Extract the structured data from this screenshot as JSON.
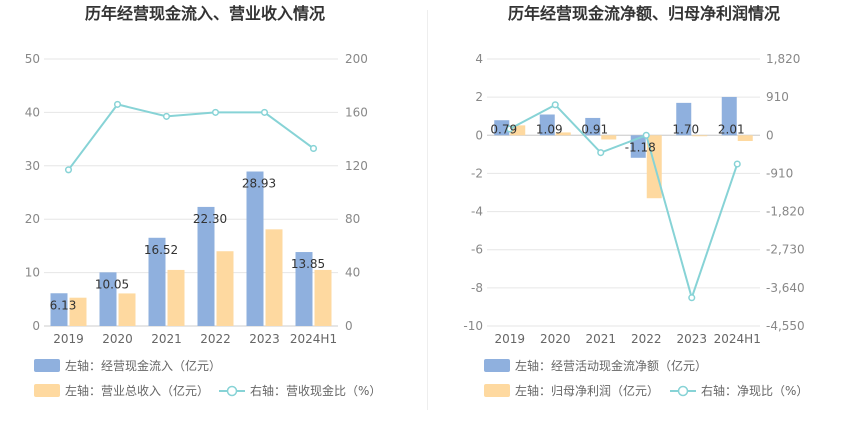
{
  "chart_data": [
    {
      "type": "bar",
      "title": "历年经营现金流入、营业收入情况",
      "categories": [
        "2019",
        "2020",
        "2021",
        "2022",
        "2023",
        "2024H1"
      ],
      "left_axis": {
        "min": 0,
        "max": 50,
        "ticks": [
          "0",
          "10",
          "20",
          "30",
          "40",
          "50"
        ]
      },
      "right_axis": {
        "min": 0,
        "max": 200,
        "ticks": [
          "0",
          "40",
          "80",
          "120",
          "160",
          "200"
        ]
      },
      "series": [
        {
          "name": "左轴：经营现金流入（亿元）",
          "type": "bar",
          "axis": "left",
          "color": "#8fb0de",
          "values": [
            6.13,
            10.05,
            16.52,
            22.3,
            28.93,
            13.85
          ],
          "labels": [
            "6.13",
            "10.05",
            "16.52",
            "22.30",
            "28.93",
            "13.85"
          ]
        },
        {
          "name": "左轴：营业总收入（亿元）",
          "type": "bar",
          "axis": "left",
          "color": "#fed9a0",
          "values": [
            5.3,
            6.1,
            10.5,
            14.0,
            18.1,
            10.5
          ]
        },
        {
          "name": "右轴：营收现金比（%）",
          "type": "line",
          "axis": "right",
          "color": "#87d3d6",
          "values": [
            117,
            166,
            157,
            160,
            160,
            133
          ]
        }
      ],
      "grid": true,
      "legend": "bottom"
    },
    {
      "type": "bar",
      "title": "历年经营现金流净额、归母净利润情况",
      "categories": [
        "2019",
        "2020",
        "2021",
        "2022",
        "2023",
        "2024H1"
      ],
      "left_axis": {
        "min": -10,
        "max": 4,
        "ticks": [
          "-10",
          "-8",
          "-6",
          "-4",
          "-2",
          "0",
          "2",
          "4"
        ]
      },
      "right_axis": {
        "min": -4550,
        "max": 1820,
        "ticks": [
          "-4,550",
          "-3,640",
          "-2,730",
          "-1,820",
          "-910",
          "0",
          "910",
          "1,820"
        ]
      },
      "series": [
        {
          "name": "左轴：经营活动现金流净额（亿元）",
          "type": "bar",
          "axis": "left",
          "color": "#8fb0de",
          "values": [
            0.79,
            1.09,
            0.91,
            -1.18,
            1.7,
            2.01
          ],
          "labels": [
            "0.79",
            "1.09",
            "0.91",
            "-1.18",
            "1.70",
            "2.01"
          ]
        },
        {
          "name": "左轴：归母净利润（亿元）",
          "type": "bar",
          "axis": "left",
          "color": "#fed9a0",
          "values": [
            0.52,
            0.15,
            -0.22,
            -3.3,
            -0.05,
            -0.3
          ]
        },
        {
          "name": "右轴：净现比（%）",
          "type": "line",
          "axis": "right",
          "color": "#87d3d6",
          "values": [
            152,
            727,
            -414,
            0,
            -3875,
            -686
          ]
        }
      ],
      "grid": true,
      "legend": "bottom"
    }
  ]
}
